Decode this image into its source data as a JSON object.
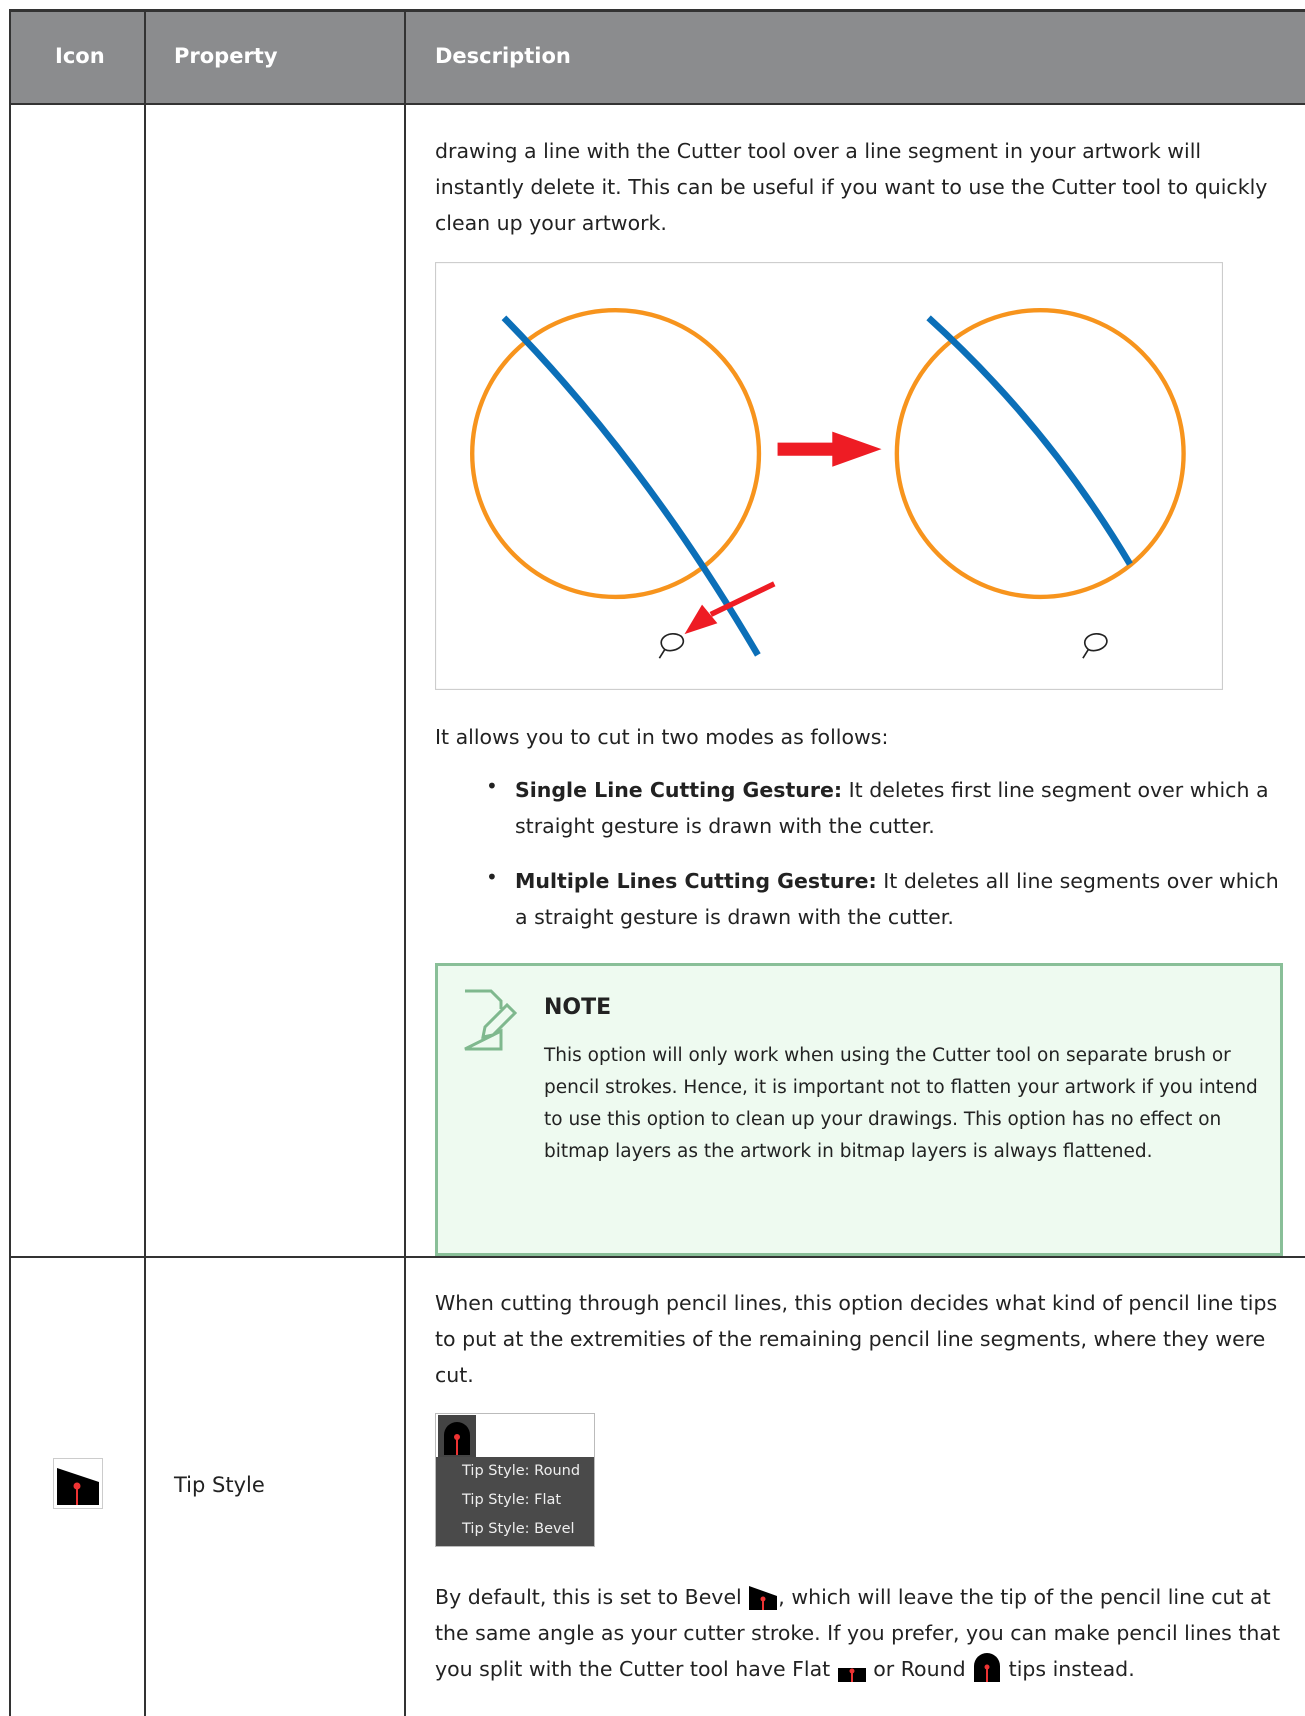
{
  "table": {
    "columns": [
      "Icon",
      "Property",
      "Description"
    ],
    "rows": [
      {
        "description": {
          "paragraphs": [
            "drawing a line with the Cutter tool over a line segment in your artwork will instantly delete it. This can be useful if you want to use the Cutter tool to quickly clean up your artwork."
          ],
          "intro": "It allows you to cut in two modes as follows:",
          "bullets": [
            {
              "term": "Single Line Cutting Gesture:",
              "text": "It deletes first line segment over which a straight gesture is drawn with the cutter."
            },
            {
              "term": "Multiple Lines Cutting Gesture:",
              "text": "It deletes all line segments over which a straight gesture is drawn with the cutter."
            }
          ],
          "note": {
            "title": "NOTE",
            "text": "This option will only work when using the Cutter tool on separate brush or pencil strokes. Hence, it is important not to flatten your artwork if you intend to use this option to clean up your drawings. This option has no effect on bitmap layers as the artwork in bitmap layers is always flattened."
          }
        }
      },
      {
        "property": "Tip Style",
        "description": {
          "paragraphs": [
            "When cutting through pencil lines, this option decides what kind of pencil line tips to put at the extremities of the remaining pencil line segments, where they were cut."
          ],
          "menu": [
            "Tip Style: Round",
            "Tip Style: Flat",
            "Tip Style: Bevel"
          ],
          "closing": [
            "By default, this is set to Bevel",
            ", which will leave the tip of the pencil line cut at the same angle as your cutter stroke. If you prefer, you can make pencil lines that you split with the Cutter tool have Flat",
            "or Round",
            "tips instead."
          ]
        }
      }
    ]
  }
}
